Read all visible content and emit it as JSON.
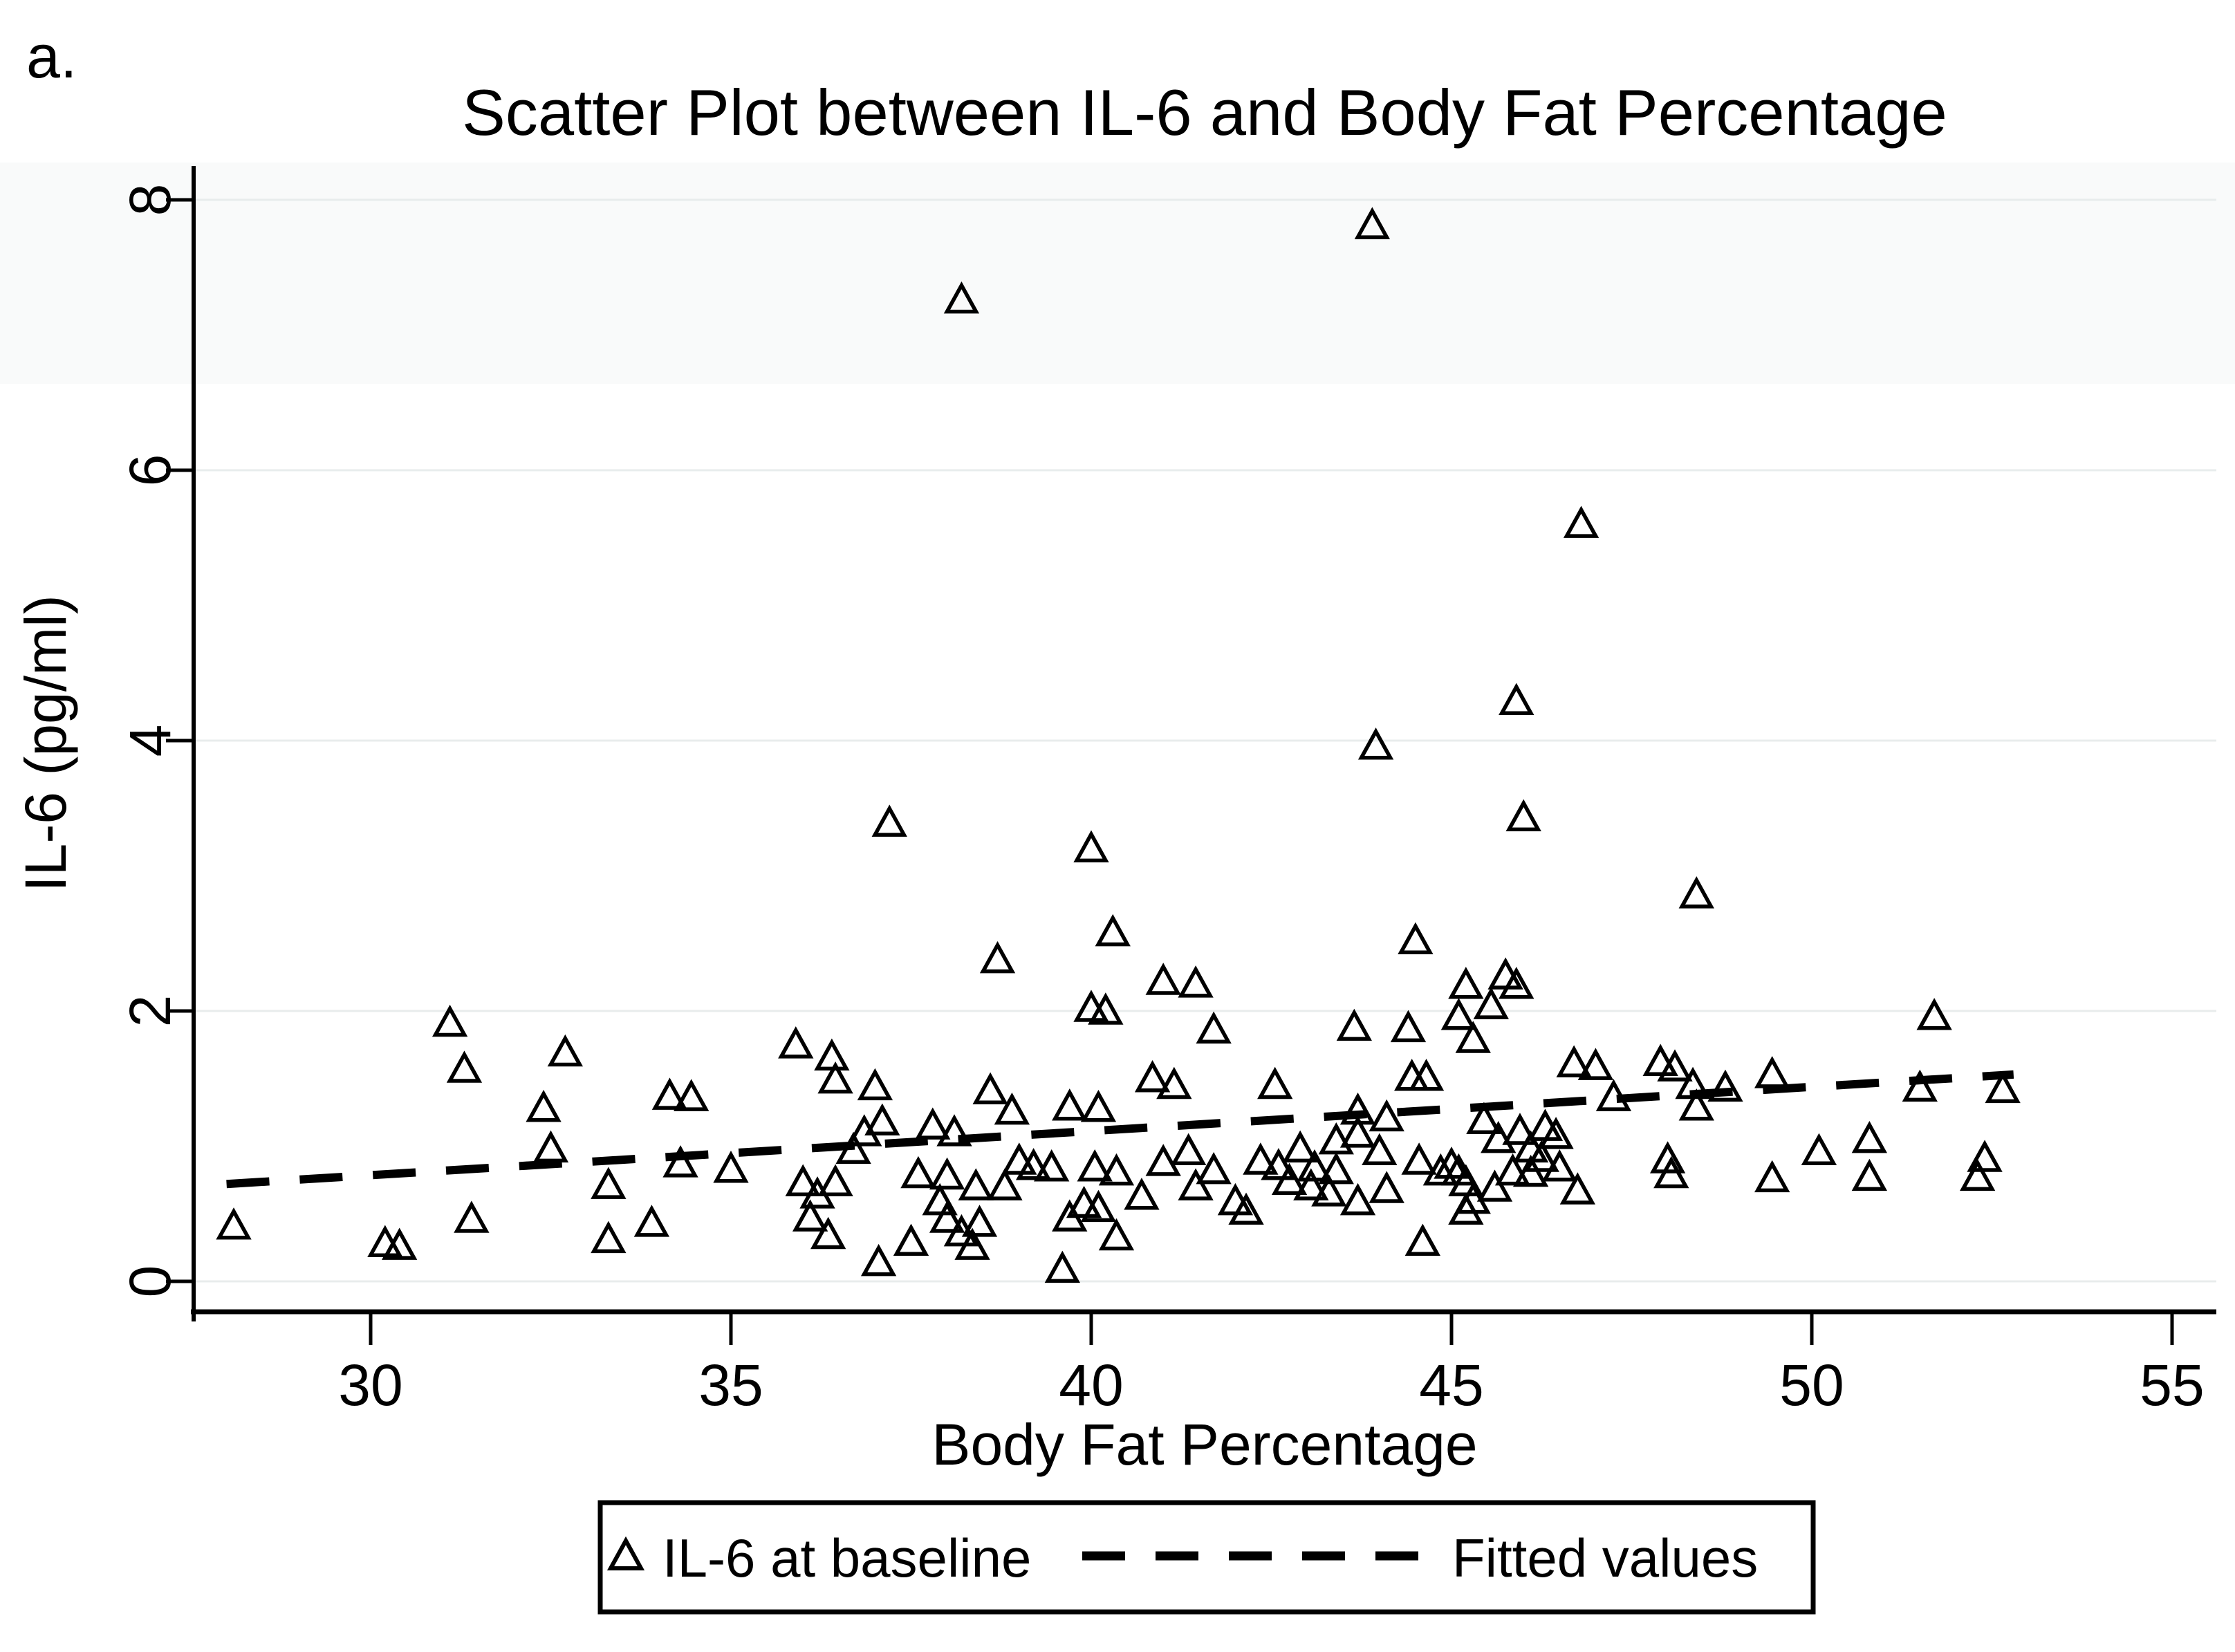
{
  "figure": {
    "panel_label": "a.",
    "title": "Scatter Plot between IL-6 and Body Fat Percentage"
  },
  "axes": {
    "x": {
      "label": "Body Fat Percentage",
      "ticks": [
        30,
        35,
        40,
        45,
        50,
        55
      ],
      "range": [
        27.5,
        55.6
      ]
    },
    "y": {
      "label": "IL-6 (pg/ml)",
      "ticks": [
        0,
        2,
        4,
        6,
        8
      ],
      "range": [
        -0.2,
        8.2
      ]
    }
  },
  "legend": {
    "items": [
      {
        "marker": "open-triangle",
        "label": "IL-6 at baseline"
      },
      {
        "marker": "dashed-line",
        "label": "Fitted values"
      }
    ]
  },
  "colors": {
    "marker": "#000000",
    "line": "#000000",
    "grid": "#e8ecec",
    "band": "#f4f5f6",
    "background": "#ffffff"
  },
  "chart_data": {
    "type": "scatter",
    "title": "Scatter Plot between IL-6 and Body Fat Percentage",
    "xlabel": "Body Fat Percentage",
    "ylabel": "IL-6 (pg/ml)",
    "xlim": [
      27.5,
      55.6
    ],
    "ylim": [
      -0.2,
      8.2
    ],
    "x_ticks": [
      30,
      35,
      40,
      45,
      50,
      55
    ],
    "y_ticks": [
      0,
      2,
      4,
      6,
      8
    ],
    "grid": "horizontal-only",
    "legend_position": "bottom",
    "series": [
      {
        "name": "IL-6 at baseline",
        "kind": "scatter",
        "marker": "open-triangle",
        "points": [
          [
            28.1,
            0.4
          ],
          [
            30.2,
            0.27
          ],
          [
            30.4,
            0.25
          ],
          [
            31.1,
            1.9
          ],
          [
            31.3,
            1.56
          ],
          [
            31.4,
            0.45
          ],
          [
            32.4,
            1.27
          ],
          [
            32.5,
            0.97
          ],
          [
            32.7,
            1.68
          ],
          [
            33.3,
            0.7
          ],
          [
            33.3,
            0.3
          ],
          [
            33.9,
            0.42
          ],
          [
            34.15,
            1.36
          ],
          [
            34.45,
            1.35
          ],
          [
            34.3,
            0.86
          ],
          [
            35.0,
            0.82
          ],
          [
            35.9,
            1.74
          ],
          [
            36.4,
            1.65
          ],
          [
            36.45,
            1.48
          ],
          [
            37.0,
            1.43
          ],
          [
            36.85,
            1.09
          ],
          [
            37.1,
            1.17
          ],
          [
            36.7,
            0.96
          ],
          [
            36.0,
            0.72
          ],
          [
            36.2,
            0.63
          ],
          [
            36.45,
            0.72
          ],
          [
            36.1,
            0.46
          ],
          [
            36.35,
            0.33
          ],
          [
            37.05,
            0.13
          ],
          [
            37.5,
            0.28
          ],
          [
            37.6,
            0.78
          ],
          [
            38.0,
            0.77
          ],
          [
            37.9,
            0.58
          ],
          [
            38.0,
            0.45
          ],
          [
            38.2,
            0.35
          ],
          [
            38.35,
            0.25
          ],
          [
            38.45,
            0.42
          ],
          [
            38.4,
            0.69
          ],
          [
            38.8,
            0.69
          ],
          [
            37.8,
            1.14
          ],
          [
            38.1,
            1.09
          ],
          [
            38.6,
            1.4
          ],
          [
            38.9,
            1.25
          ],
          [
            39.0,
            0.88
          ],
          [
            39.2,
            0.84
          ],
          [
            39.45,
            0.83
          ],
          [
            39.6,
            0.08
          ],
          [
            37.2,
            3.38
          ],
          [
            38.2,
            7.25
          ],
          [
            38.7,
            2.37
          ],
          [
            39.7,
            1.28
          ],
          [
            40.1,
            1.27
          ],
          [
            39.7,
            0.46
          ],
          [
            39.9,
            0.56
          ],
          [
            40.1,
            0.53
          ],
          [
            40.05,
            0.83
          ],
          [
            40.35,
            0.8
          ],
          [
            40.35,
            0.32
          ],
          [
            40.7,
            0.62
          ],
          [
            40.0,
            2.01
          ],
          [
            40.2,
            1.99
          ],
          [
            40.0,
            3.19
          ],
          [
            40.3,
            2.57
          ],
          [
            40.85,
            1.49
          ],
          [
            41.15,
            1.44
          ],
          [
            41.0,
            2.21
          ],
          [
            41.45,
            2.19
          ],
          [
            41.7,
            1.85
          ],
          [
            41.0,
            0.87
          ],
          [
            41.35,
            0.95
          ],
          [
            41.45,
            0.69
          ],
          [
            41.7,
            0.81
          ],
          [
            42.0,
            0.58
          ],
          [
            42.15,
            0.51
          ],
          [
            42.35,
            0.88
          ],
          [
            42.55,
            1.44
          ],
          [
            42.6,
            0.84
          ],
          [
            42.75,
            0.73
          ],
          [
            42.9,
            0.97
          ],
          [
            43.05,
            0.69
          ],
          [
            43.1,
            0.83
          ],
          [
            43.3,
            0.645
          ],
          [
            43.4,
            1.03
          ],
          [
            43.4,
            0.81
          ],
          [
            43.7,
            0.58
          ],
          [
            43.65,
            1.87
          ],
          [
            43.7,
            1.25
          ],
          [
            43.7,
            1.08
          ],
          [
            44.1,
            1.2
          ],
          [
            44.0,
            0.95
          ],
          [
            44.1,
            0.67
          ],
          [
            44.4,
            1.86
          ],
          [
            44.45,
            1.5
          ],
          [
            44.65,
            1.5
          ],
          [
            44.55,
            0.88
          ],
          [
            44.85,
            0.8
          ],
          [
            44.6,
            0.28
          ],
          [
            44.5,
            2.51
          ],
          [
            43.95,
            3.95
          ],
          [
            43.9,
            7.8
          ],
          [
            45.1,
            1.95
          ],
          [
            45.2,
            2.18
          ],
          [
            45.75,
            2.25
          ],
          [
            45.9,
            2.18
          ],
          [
            45.55,
            2.03
          ],
          [
            45.3,
            1.78
          ],
          [
            45.45,
            1.18
          ],
          [
            45.65,
            1.04
          ],
          [
            45.95,
            1.1
          ],
          [
            46.3,
            1.13
          ],
          [
            46.45,
            1.07
          ],
          [
            45.1,
            0.8
          ],
          [
            45.0,
            0.85
          ],
          [
            45.2,
            0.72
          ],
          [
            45.3,
            0.59
          ],
          [
            45.2,
            0.51
          ],
          [
            45.6,
            0.68
          ],
          [
            45.85,
            0.8
          ],
          [
            46.1,
            0.97
          ],
          [
            46.25,
            0.9
          ],
          [
            46.1,
            0.79
          ],
          [
            46.5,
            0.83
          ],
          [
            46.75,
            0.66
          ],
          [
            45.9,
            4.28
          ],
          [
            46.0,
            3.42
          ],
          [
            46.8,
            5.59
          ],
          [
            46.7,
            1.6
          ],
          [
            47.0,
            1.58
          ],
          [
            47.25,
            1.35
          ],
          [
            47.9,
            1.61
          ],
          [
            48.1,
            1.57
          ],
          [
            48.35,
            1.44
          ],
          [
            48.4,
            1.28
          ],
          [
            48.8,
            1.42
          ],
          [
            48.0,
            0.89
          ],
          [
            48.05,
            0.78
          ],
          [
            48.4,
            2.85
          ],
          [
            49.45,
            1.52
          ],
          [
            49.45,
            0.75
          ],
          [
            50.1,
            0.95
          ],
          [
            50.8,
            1.04
          ],
          [
            50.8,
            0.76
          ],
          [
            51.7,
            1.95
          ],
          [
            51.5,
            1.42
          ],
          [
            52.65,
            1.41
          ],
          [
            52.4,
            0.9
          ],
          [
            52.3,
            0.76
          ]
        ]
      },
      {
        "name": "Fitted values",
        "kind": "line",
        "style": "dashed",
        "endpoints": [
          [
            28.0,
            0.72
          ],
          [
            52.8,
            1.53
          ]
        ]
      }
    ]
  }
}
